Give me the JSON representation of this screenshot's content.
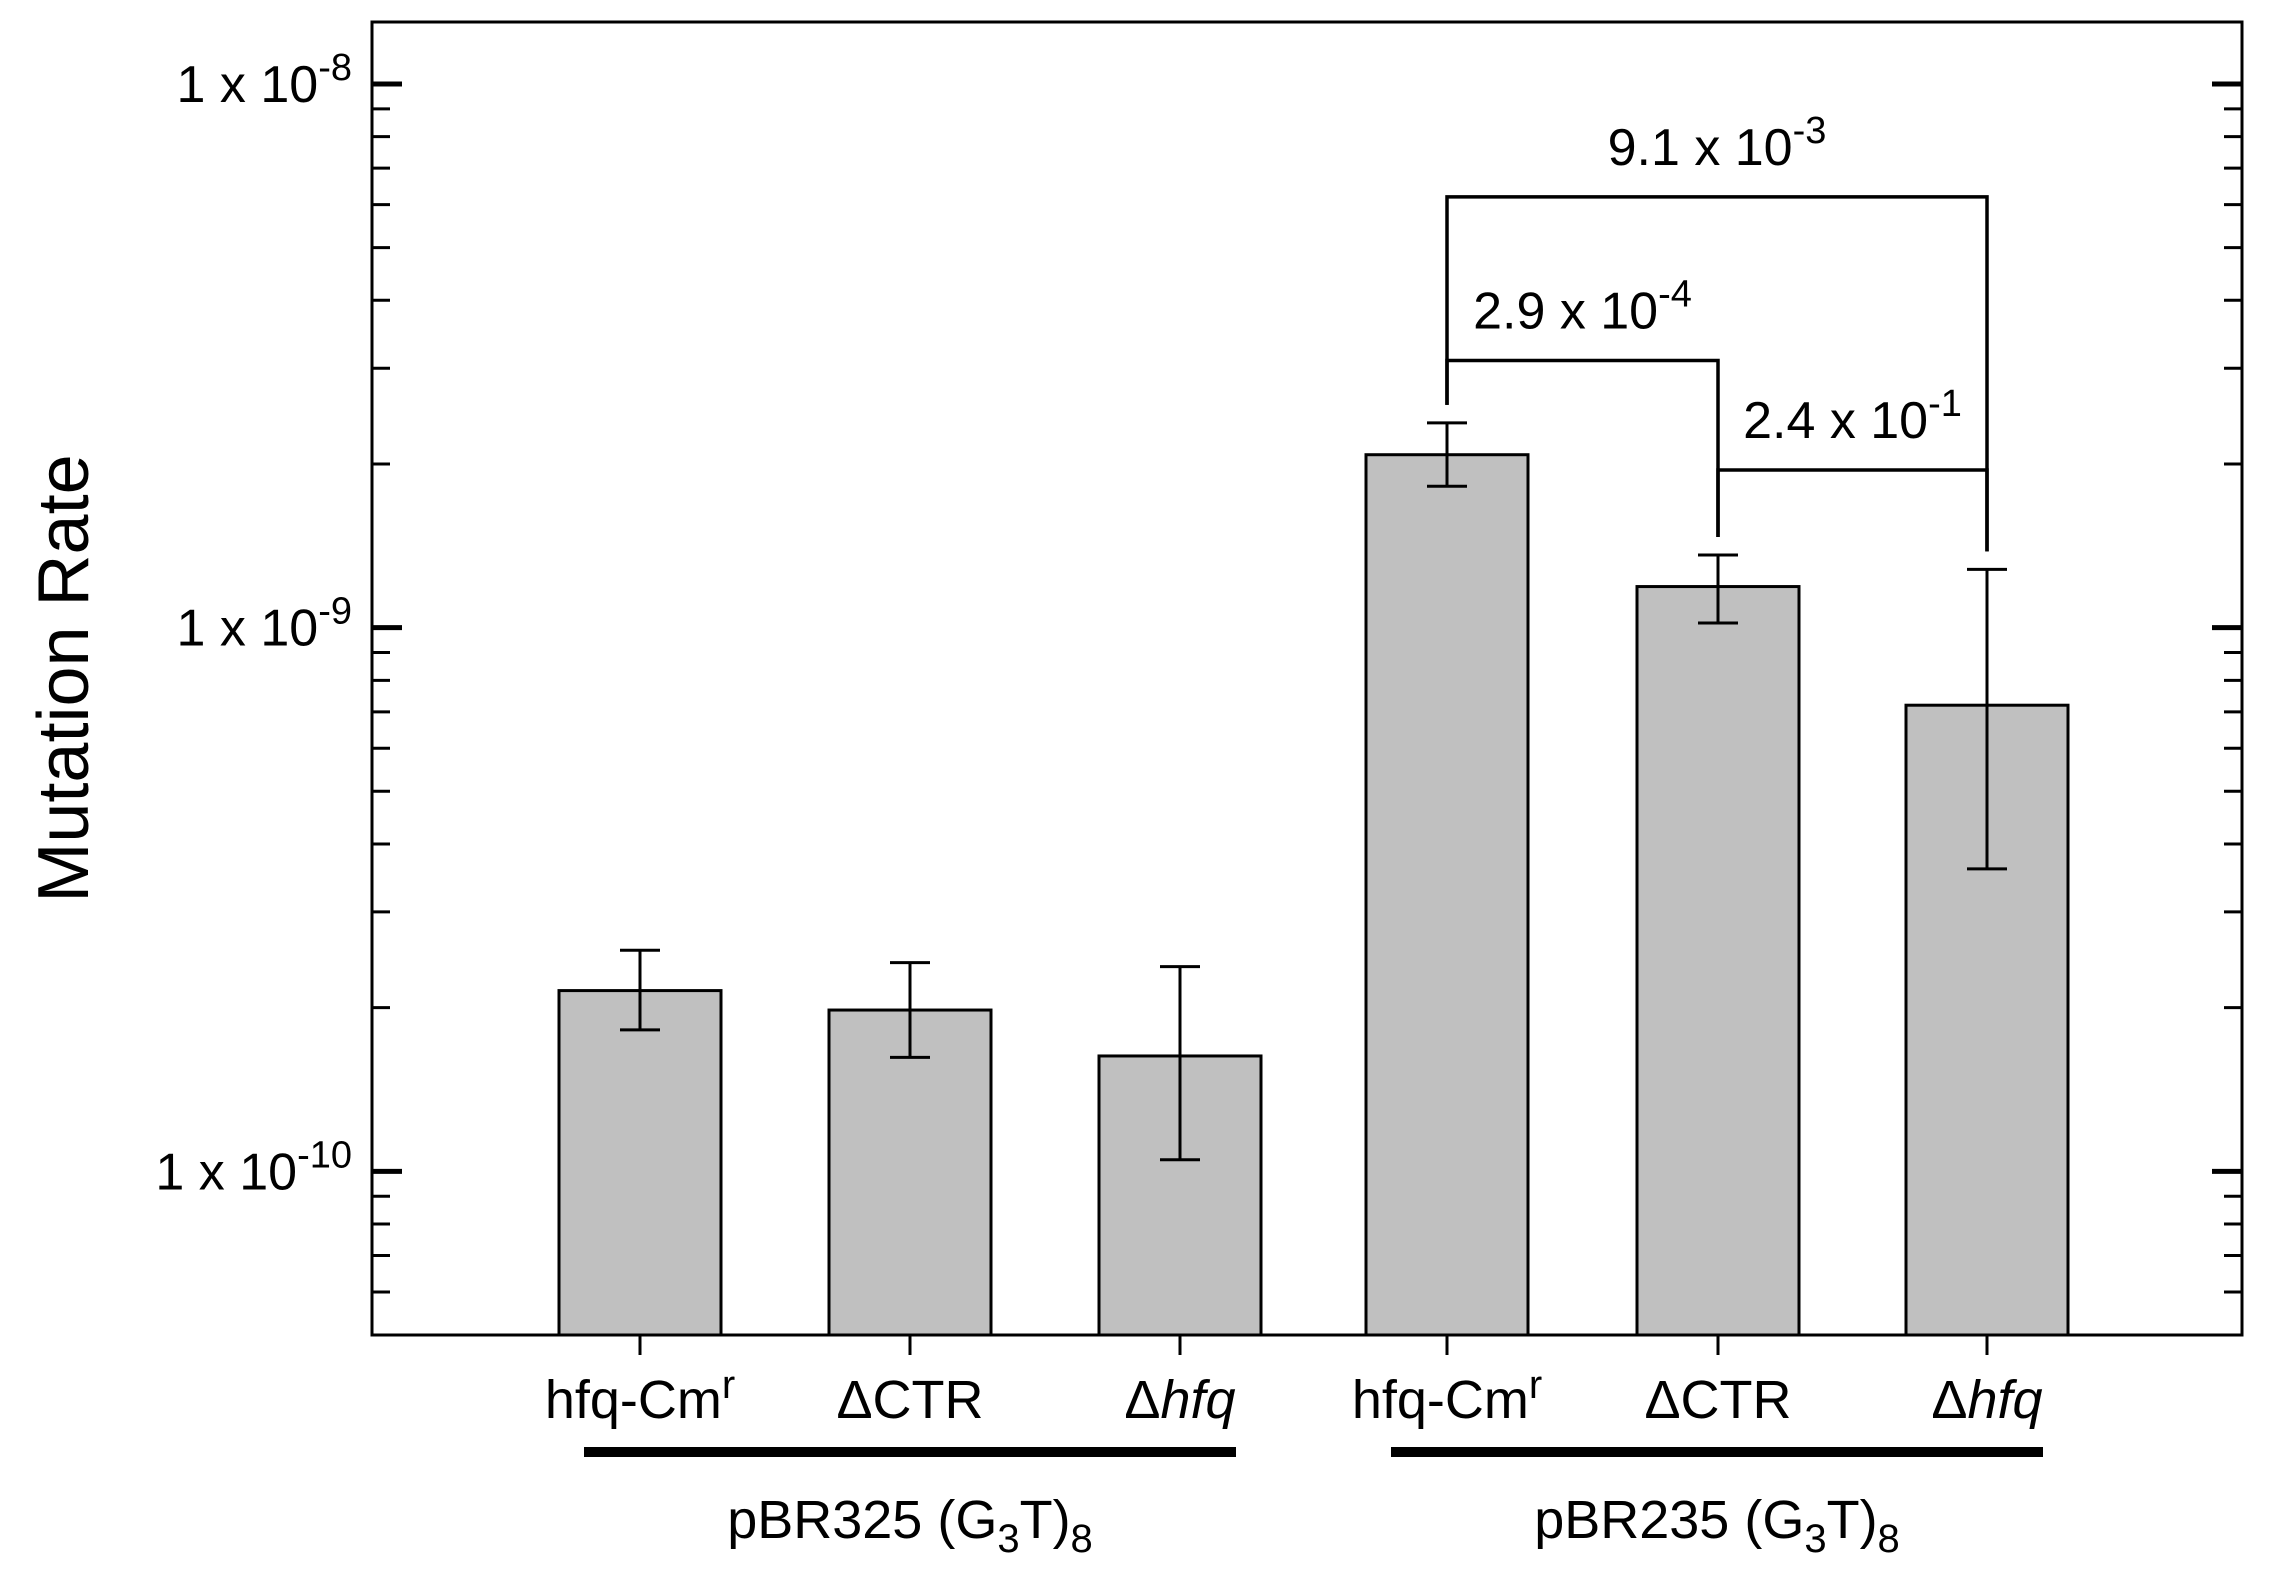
{
  "chart_data": {
    "type": "bar",
    "scale": "log",
    "title": "",
    "xlabel": "",
    "ylabel": "Mutation Rate",
    "ylim": [
      5e-11,
      1.3e-08
    ],
    "y_ticks": [
      {
        "value": 1e-08,
        "base": "1 x 10",
        "exp": "-8"
      },
      {
        "value": 1e-09,
        "base": "1 x 10",
        "exp": "-9"
      },
      {
        "value": 1e-10,
        "base": "1 x 10",
        "exp": "-10"
      }
    ],
    "bar_color": "#c0c0c0",
    "bars": [
      {
        "label": "hfq-Cm",
        "sup": "r",
        "italic": false,
        "value": 2.15e-10,
        "err_low": 1.82e-10,
        "err_high": 2.55e-10
      },
      {
        "label": "ΔCTR",
        "sup": "",
        "italic": false,
        "value": 1.98e-10,
        "err_low": 1.62e-10,
        "err_high": 2.42e-10
      },
      {
        "label": "Δhfq",
        "sup": "",
        "italic": true,
        "value": 1.63e-10,
        "err_low": 1.05e-10,
        "err_high": 2.38e-10
      },
      {
        "label": "hfq-Cm",
        "sup": "r",
        "italic": false,
        "value": 2.08e-09,
        "err_low": 1.82e-09,
        "err_high": 2.38e-09
      },
      {
        "label": "ΔCTR",
        "sup": "",
        "italic": false,
        "value": 1.19e-09,
        "err_low": 1.02e-09,
        "err_high": 1.36e-09
      },
      {
        "label": "Δhfq",
        "sup": "",
        "italic": true,
        "value": 7.2e-10,
        "err_low": 3.6e-10,
        "err_high": 1.28e-09
      }
    ],
    "groups": [
      {
        "label": "pBR325 (G",
        "sub1": "3",
        "mid": "T)",
        "sub2": "8",
        "bars": [
          0,
          2
        ]
      },
      {
        "label": "pBR235 (G",
        "sub1": "3",
        "mid": "T)",
        "sub2": "8",
        "bars": [
          3,
          5
        ]
      }
    ],
    "brackets": [
      {
        "from": 3,
        "to": 5,
        "base": "9.1 x 10",
        "exp": "-3",
        "level": 6.2e-09
      },
      {
        "from": 3,
        "to": 4,
        "base": "2.9 x 10",
        "exp": "-4",
        "level": 3.1e-09
      },
      {
        "from": 4,
        "to": 5,
        "base": "2.4 x 10",
        "exp": "-1",
        "level": 1.95e-09
      }
    ]
  }
}
